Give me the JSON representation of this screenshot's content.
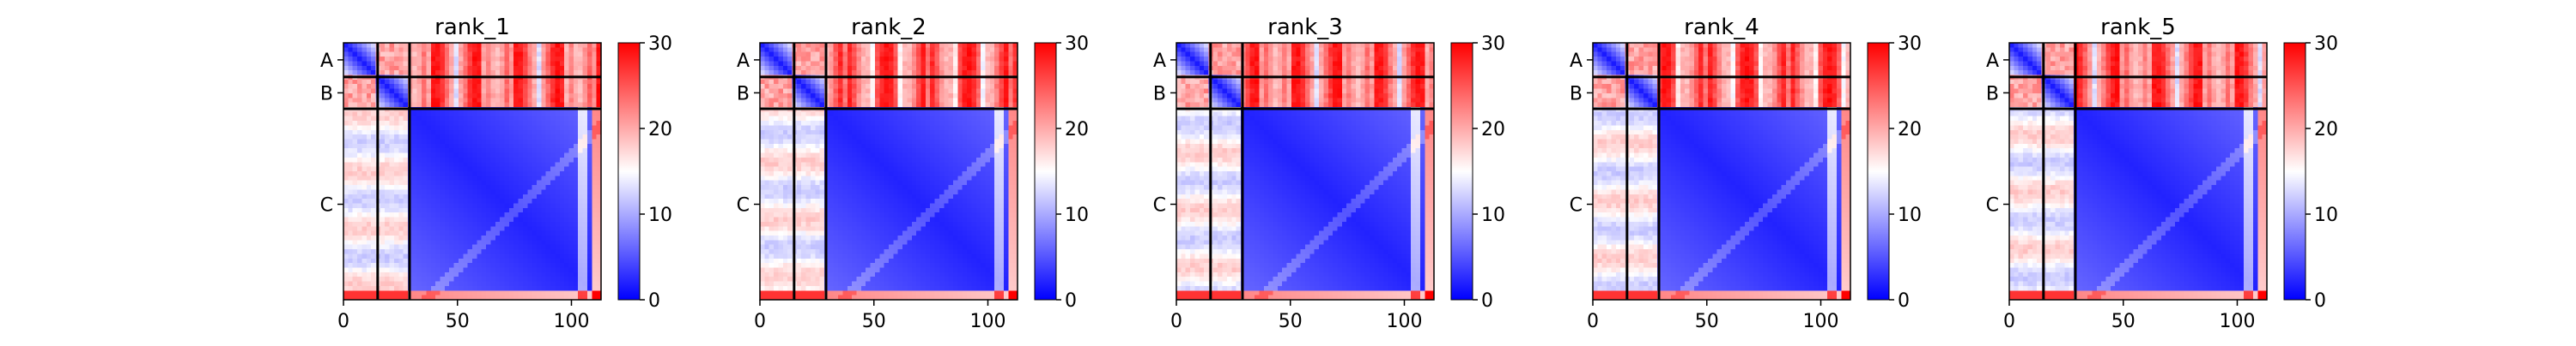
{
  "chart_data": {
    "type": "heatmap",
    "chains": [
      {
        "label": "A",
        "start": 0,
        "end": 15
      },
      {
        "label": "B",
        "start": 15,
        "end": 29
      },
      {
        "label": "C",
        "start": 29,
        "end": 113
      }
    ],
    "total_length": 113,
    "xticks": [
      0,
      50,
      100
    ],
    "colorbar": {
      "min": 0,
      "max": 30,
      "ticks": [
        0,
        10,
        20,
        30
      ],
      "colors": [
        "#0000ff",
        "#ffffff",
        "#ff0000"
      ]
    },
    "panels": [
      {
        "title": "rank_1"
      },
      {
        "title": "rank_2"
      },
      {
        "title": "rank_3"
      },
      {
        "title": "rank_4"
      },
      {
        "title": "rank_5"
      }
    ]
  }
}
